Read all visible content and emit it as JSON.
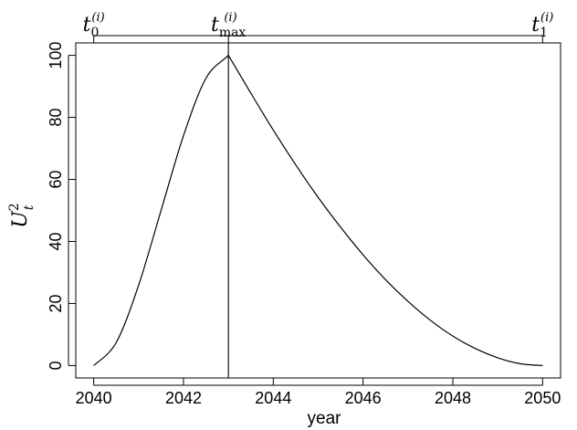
{
  "chart_data": {
    "type": "line",
    "xlabel": "year",
    "ylabel": {
      "base": "U",
      "superscript": "2",
      "subscript": "t"
    },
    "xlim": [
      2040,
      2050
    ],
    "ylim": [
      0,
      100
    ],
    "x_ticks": [
      "2040",
      "2042",
      "2044",
      "2046",
      "2048",
      "2050"
    ],
    "y_ticks": [
      "0",
      "20",
      "40",
      "60",
      "80",
      "100"
    ],
    "grid": false,
    "top_axis_marks": [
      {
        "x": 2040,
        "base": "t",
        "subscript": "0",
        "superscript": "(i)"
      },
      {
        "x": 2043,
        "base": "t",
        "subscript": "max",
        "superscript": "(i)"
      },
      {
        "x": 2050,
        "base": "t",
        "subscript": "1",
        "superscript": "(i)"
      }
    ],
    "vertical_line_x": 2043,
    "series": [
      {
        "x": [
          2040.0,
          2040.5,
          2041.0,
          2041.5,
          2042.0,
          2042.5,
          2043.0,
          2043.5,
          2044.0,
          2044.5,
          2045.0,
          2045.5,
          2046.0,
          2046.5,
          2047.0,
          2047.5,
          2048.0,
          2048.5,
          2049.0,
          2049.5,
          2050.0
        ],
        "y": [
          0.0,
          7.4,
          25.9,
          50.0,
          74.1,
          92.6,
          100.0,
          87.8,
          75.9,
          64.7,
          54.2,
          44.6,
          35.7,
          27.7,
          20.7,
          14.6,
          9.5,
          5.5,
          2.5,
          0.6,
          0.0
        ]
      }
    ]
  }
}
